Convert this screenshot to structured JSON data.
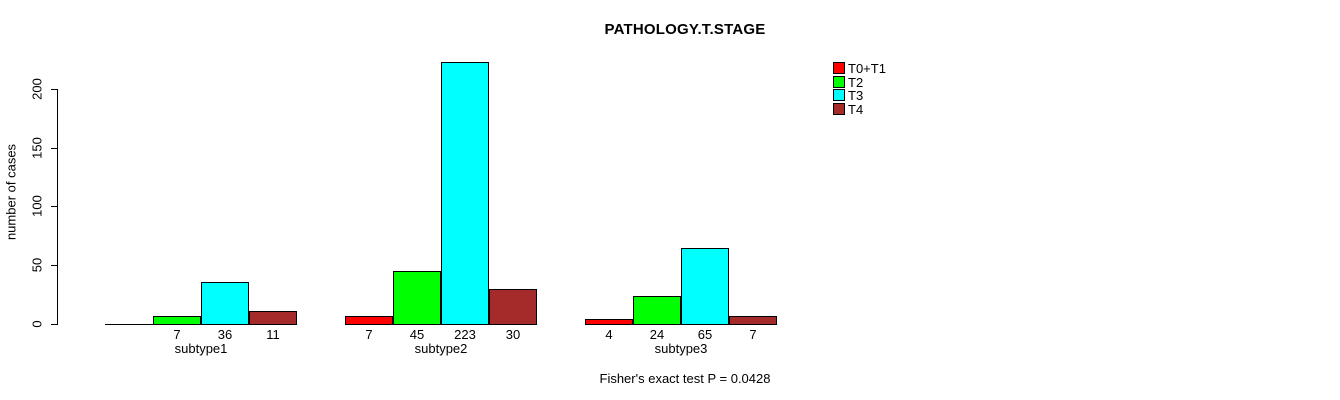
{
  "title": "PATHOLOGY.T.STAGE",
  "footer": "Fisher's exact test P = 0.0428",
  "chart_data": {
    "type": "bar",
    "grouped": true,
    "title": "PATHOLOGY.T.STAGE",
    "xlabel": "",
    "ylabel": "number of cases",
    "ylim": [
      0,
      200
    ],
    "yticks": [
      0,
      50,
      100,
      150,
      200
    ],
    "grid": false,
    "categories": [
      "subtype1",
      "subtype2",
      "subtype3"
    ],
    "series": [
      {
        "name": "T0+T1",
        "color": "#FF0000",
        "values": [
          0,
          7,
          4
        ],
        "bar_labels": [
          "",
          "7",
          "4"
        ]
      },
      {
        "name": "T2",
        "color": "#00FF00",
        "values": [
          7,
          45,
          24
        ],
        "bar_labels": [
          "7",
          "45",
          "24"
        ]
      },
      {
        "name": "T3",
        "color": "#00FFFF",
        "values": [
          36,
          223,
          65
        ],
        "bar_labels": [
          "36",
          "223",
          "65"
        ]
      },
      {
        "name": "T4",
        "color": "#A52A2A",
        "values": [
          11,
          30,
          7
        ],
        "bar_labels": [
          "11",
          "30",
          "7"
        ]
      }
    ],
    "legend": {
      "position": "top-right",
      "entries": [
        "T0+T1",
        "T2",
        "T3",
        "T4"
      ]
    },
    "annotation": "Fisher's exact test P = 0.0428"
  }
}
